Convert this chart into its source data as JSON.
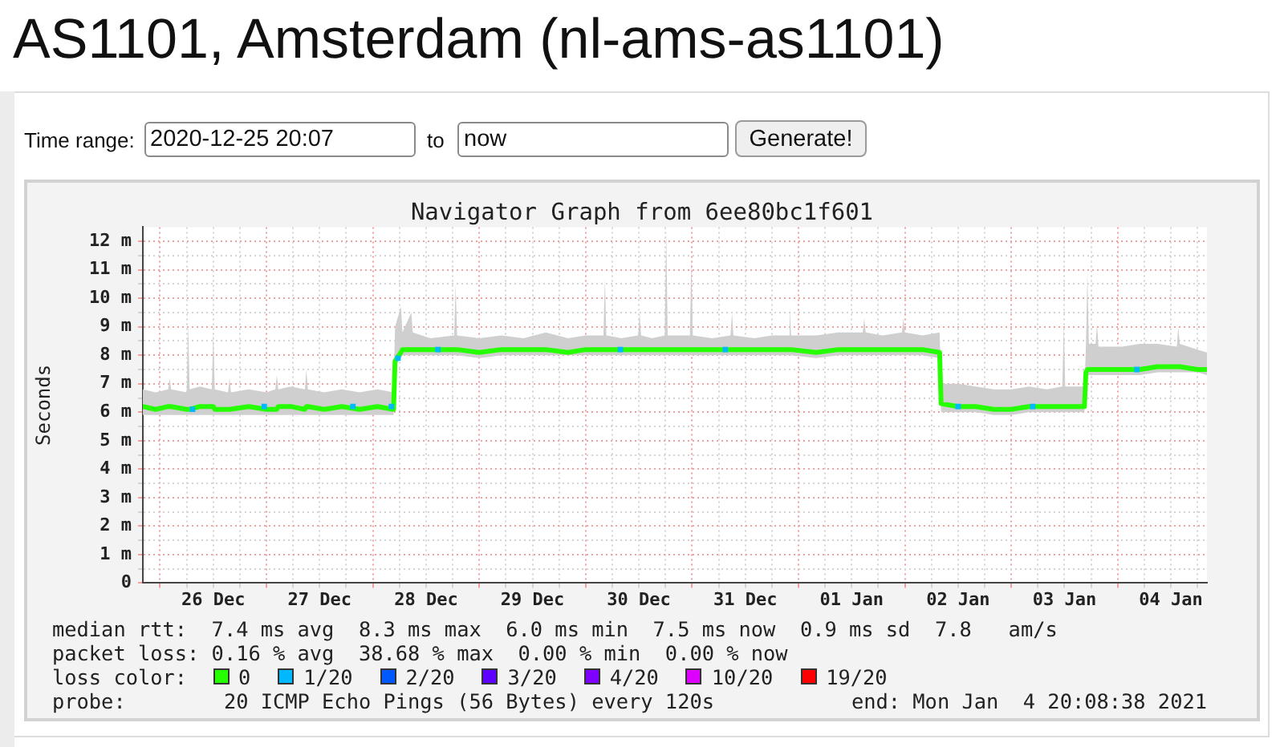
{
  "chart_data": {
    "type": "line",
    "title": "AS1101, Amsterdam (nl-ams-as1101)",
    "subtitle": "Navigator Graph from 6ee80bc1f601",
    "ylabel": "Seconds",
    "legend_title": "loss color:",
    "legend": "bottom",
    "grid": true,
    "xlim": [
      "2020-12-25T20:07",
      "2021-01-04T20:08"
    ],
    "xticks": [
      {
        "value": "2020-12-26T00:00",
        "label": null
      },
      {
        "value": "2020-12-26T06:00",
        "label": null
      },
      {
        "value": "2020-12-26T12:00",
        "label": "26 Dec"
      },
      {
        "value": "2020-12-26T18:00",
        "label": null
      },
      {
        "value": "2020-12-27T00:00",
        "label": null
      },
      {
        "value": "2020-12-27T06:00",
        "label": null
      },
      {
        "value": "2020-12-27T12:00",
        "label": "27 Dec"
      },
      {
        "value": "2020-12-27T18:00",
        "label": null
      },
      {
        "value": "2020-12-28T00:00",
        "label": null
      },
      {
        "value": "2020-12-28T06:00",
        "label": null
      },
      {
        "value": "2020-12-28T12:00",
        "label": "28 Dec"
      },
      {
        "value": "2020-12-28T18:00",
        "label": null
      },
      {
        "value": "2020-12-29T00:00",
        "label": null
      },
      {
        "value": "2020-12-29T06:00",
        "label": null
      },
      {
        "value": "2020-12-29T12:00",
        "label": "29 Dec"
      },
      {
        "value": "2020-12-29T18:00",
        "label": null
      },
      {
        "value": "2020-12-30T00:00",
        "label": null
      },
      {
        "value": "2020-12-30T06:00",
        "label": null
      },
      {
        "value": "2020-12-30T12:00",
        "label": "30 Dec"
      },
      {
        "value": "2020-12-30T18:00",
        "label": null
      },
      {
        "value": "2020-12-31T00:00",
        "label": null
      },
      {
        "value": "2020-12-31T06:00",
        "label": null
      },
      {
        "value": "2020-12-31T12:00",
        "label": "31 Dec"
      },
      {
        "value": "2020-12-31T18:00",
        "label": null
      },
      {
        "value": "2021-01-01T00:00",
        "label": null
      },
      {
        "value": "2021-01-01T06:00",
        "label": null
      },
      {
        "value": "2021-01-01T12:00",
        "label": "01 Jan"
      },
      {
        "value": "2021-01-01T18:00",
        "label": null
      },
      {
        "value": "2021-01-02T00:00",
        "label": null
      },
      {
        "value": "2021-01-02T06:00",
        "label": null
      },
      {
        "value": "2021-01-02T12:00",
        "label": "02 Jan"
      },
      {
        "value": "2021-01-02T18:00",
        "label": null
      },
      {
        "value": "2021-01-03T00:00",
        "label": null
      },
      {
        "value": "2021-01-03T06:00",
        "label": null
      },
      {
        "value": "2021-01-03T12:00",
        "label": "03 Jan"
      },
      {
        "value": "2021-01-03T18:00",
        "label": null
      },
      {
        "value": "2021-01-04T00:00",
        "label": null
      },
      {
        "value": "2021-01-04T06:00",
        "label": null
      },
      {
        "value": "2021-01-04T12:00",
        "label": "04 Jan"
      },
      {
        "value": "2021-01-04T18:00",
        "label": null
      }
    ],
    "ylim": [
      0,
      12.5
    ],
    "yticks": [
      0,
      {
        "value": 0.5,
        "label": null
      },
      {
        "value": 1,
        "label": "1 m"
      },
      {
        "value": 1.5,
        "label": null
      },
      {
        "value": 2,
        "label": "2 m"
      },
      {
        "value": 2.5,
        "label": null
      },
      {
        "value": 3,
        "label": "3 m"
      },
      {
        "value": 3.5,
        "label": null
      },
      {
        "value": 4,
        "label": "4 m"
      },
      {
        "value": 4.5,
        "label": null
      },
      {
        "value": 5,
        "label": "5 m"
      },
      {
        "value": 5.5,
        "label": null
      },
      {
        "value": 6,
        "label": "6 m"
      },
      {
        "value": 6.5,
        "label": null
      },
      {
        "value": 7,
        "label": "7 m"
      },
      {
        "value": 7.5,
        "label": null
      },
      {
        "value": 8,
        "label": "8 m"
      },
      {
        "value": 8.5,
        "label": null
      },
      {
        "value": 9,
        "label": "9 m"
      },
      {
        "value": 9.5,
        "label": null
      },
      {
        "value": 10,
        "label": "10 m"
      },
      {
        "value": 10.5,
        "label": null
      },
      {
        "value": 11,
        "label": "11 m"
      },
      {
        "value": 11.5,
        "label": null
      },
      {
        "value": 12,
        "label": "12 m"
      }
    ],
    "series": [
      {
        "name": "0",
        "color": "#26ff00",
        "x": [
          "2020-12-25T20:07",
          "2020-12-25T23:00",
          "2020-12-26T01:50",
          "2020-12-26T02:10",
          "2020-12-26T02:30",
          "2020-12-26T06:00",
          "2020-12-26T06:20",
          "2020-12-26T06:40",
          "2020-12-26T09:00",
          "2020-12-26T11:40",
          "2020-12-26T12:00",
          "2020-12-26T12:20",
          "2020-12-26T15:20",
          "2020-12-26T15:40",
          "2020-12-26T16:00",
          "2020-12-26T20:00",
          "2020-12-27T00:00",
          "2020-12-27T02:00",
          "2020-12-27T02:20",
          "2020-12-27T02:40",
          "2020-12-27T05:30",
          "2020-12-27T08:40",
          "2020-12-27T09:00",
          "2020-12-27T09:20",
          "2020-12-27T13:00",
          "2020-12-27T17:00",
          "2020-12-27T21:00",
          "2020-12-28T01:00",
          "2020-12-28T04:40",
          "2020-12-28T05:00",
          "2020-12-28T06:20",
          "2020-12-28T06:40",
          "2020-12-28T08:40",
          "2020-12-28T09:00",
          "2020-12-28T13:00",
          "2020-12-28T18:20",
          "2020-12-28T18:40",
          "2020-12-28T19:00",
          "2020-12-29T00:00",
          "2020-12-29T05:00",
          "2020-12-29T10:00",
          "2020-12-29T15:00",
          "2020-12-29T20:00",
          "2020-12-30T00:00",
          "2020-12-30T04:00",
          "2020-12-30T04:20",
          "2020-12-30T04:40",
          "2020-12-30T08:00",
          "2020-12-30T11:50",
          "2020-12-30T12:10",
          "2020-12-30T12:30",
          "2020-12-30T15:00",
          "2020-12-30T17:50",
          "2020-12-30T18:10",
          "2020-12-30T18:30",
          "2020-12-30T23:30",
          "2020-12-30T23:50",
          "2020-12-31T00:10",
          "2020-12-31T04:30",
          "2020-12-31T08:40",
          "2020-12-31T09:00",
          "2020-12-31T09:20",
          "2020-12-31T14:00",
          "2020-12-31T18:00",
          "2020-12-31T21:40",
          "2020-12-31T22:00",
          "2020-12-31T22:20",
          "2021-01-01T04:00",
          "2021-01-01T09:00",
          "2021-01-01T14:30",
          "2021-01-01T14:50",
          "2021-01-01T15:10",
          "2021-01-01T19:00",
          "2021-01-01T23:20",
          "2021-01-01T23:40",
          "2021-01-02T00:00",
          "2021-01-02T04:00",
          "2021-01-02T07:50",
          "2021-01-02T08:10",
          "2021-01-02T12:00",
          "2021-01-02T16:00",
          "2021-01-02T20:00",
          "2021-01-03T00:00",
          "2021-01-03T04:00",
          "2021-01-03T08:00",
          "2021-01-03T11:30",
          "2021-01-03T11:50",
          "2021-01-03T12:10",
          "2021-01-03T16:30",
          "2021-01-03T16:50",
          "2021-01-03T17:10",
          "2021-01-03T17:30",
          "2021-01-03T19:00",
          "2021-01-03T19:20",
          "2021-01-03T19:40",
          "2021-01-04T01:00",
          "2021-01-04T05:00",
          "2021-01-04T09:00",
          "2021-01-04T13:20",
          "2021-01-04T13:40",
          "2021-01-04T14:00",
          "2021-01-04T18:00",
          "2021-01-04T20:08"
        ],
        "values": [
          6.2,
          6.1,
          6.2,
          6.2,
          6.2,
          6.1,
          6.1,
          6.1,
          6.2,
          6.2,
          6.2,
          6.1,
          6.1,
          6.1,
          6.1,
          6.2,
          6.1,
          6.1,
          6.1,
          6.2,
          6.2,
          6.1,
          6.2,
          6.2,
          6.1,
          6.2,
          6.1,
          6.2,
          6.1,
          7.8,
          8.1,
          8.2,
          8.2,
          8.2,
          8.2,
          8.2,
          8.2,
          8.2,
          8.1,
          8.2,
          8.2,
          8.2,
          8.1,
          8.2,
          8.2,
          8.2,
          8.2,
          8.2,
          8.2,
          8.2,
          8.2,
          8.2,
          8.2,
          8.2,
          8.2,
          8.2,
          8.2,
          8.2,
          8.2,
          8.2,
          8.2,
          8.2,
          8.2,
          8.2,
          8.2,
          8.2,
          8.2,
          8.1,
          8.2,
          8.2,
          8.2,
          8.2,
          8.2,
          8.2,
          8.2,
          8.2,
          8.2,
          8.1,
          6.3,
          6.2,
          6.2,
          6.1,
          6.1,
          6.2,
          6.2,
          6.2,
          6.2,
          6.2,
          6.2,
          7.4,
          7.5,
          7.5,
          7.5,
          7.5,
          7.5,
          7.5,
          7.5,
          7.6,
          7.6,
          7.6,
          7.6,
          7.5,
          7.5
        ],
        "lower": [
          5.9,
          5.9,
          5.9,
          5.9,
          5.9,
          5.9,
          5.9,
          5.9,
          5.9,
          5.9,
          5.9,
          5.9,
          5.9,
          5.9,
          5.9,
          5.9,
          5.9,
          5.9,
          5.9,
          5.9,
          5.9,
          5.9,
          5.9,
          5.9,
          5.9,
          5.9,
          5.9,
          5.9,
          5.9,
          7.6,
          7.9,
          8,
          8,
          8,
          8,
          8,
          8,
          8,
          7.9,
          8,
          8,
          8,
          8,
          8,
          8,
          8,
          8,
          8,
          8,
          8,
          8,
          8,
          8,
          8,
          8,
          8,
          8,
          8,
          8,
          8,
          8,
          8,
          8,
          8,
          8,
          8,
          8,
          7.9,
          8,
          8,
          8,
          8,
          8,
          8,
          8,
          8,
          8,
          7.9,
          6,
          6,
          6,
          5.9,
          5.9,
          6,
          6,
          6,
          6,
          6,
          6,
          7.3,
          7.3,
          7.3,
          7.3,
          7.3,
          7.3,
          7.3,
          7.3,
          7.4,
          7.4,
          7.4,
          7.4,
          7.4,
          7.3
        ],
        "upper": [
          6.8,
          6.7,
          6.8,
          7.2,
          6.8,
          6.7,
          9.1,
          6.8,
          6.9,
          6.8,
          8.8,
          6.8,
          6.7,
          7.2,
          6.7,
          6.8,
          6.7,
          6.8,
          7.3,
          6.8,
          6.9,
          6.8,
          7.5,
          6.8,
          6.7,
          6.8,
          6.7,
          6.8,
          6.7,
          9,
          9.7,
          8.8,
          9.5,
          8.8,
          8.6,
          8.7,
          10.5,
          8.7,
          8.6,
          8.7,
          8.6,
          8.8,
          8.6,
          8.7,
          8.7,
          10.7,
          8.7,
          8.6,
          8.7,
          9.5,
          8.7,
          8.6,
          8.7,
          12.4,
          8.7,
          8.7,
          11.4,
          8.7,
          8.6,
          8.7,
          9.5,
          8.7,
          8.6,
          8.7,
          8.7,
          9.7,
          8.7,
          8.7,
          8.8,
          8.8,
          9.3,
          8.8,
          8.7,
          8.8,
          9.3,
          8.8,
          8.7,
          8.8,
          7,
          7,
          6.9,
          6.8,
          6.8,
          6.9,
          6.8,
          6.9,
          9.1,
          6.9,
          6.9,
          8.3,
          10.9,
          8.4,
          8.4,
          9.1,
          8.3,
          8.3,
          8.4,
          8.4,
          8.3,
          9,
          8.4,
          8.2,
          8.1
        ]
      },
      {
        "name": "1/20",
        "color": "#00b8ff",
        "type": "scatter",
        "marker": "square",
        "x": [
          "2020-12-26T07:20",
          "2020-12-26T23:30",
          "2020-12-27T19:30",
          "2020-12-28T04:10",
          "2020-12-28T05:40",
          "2020-12-28T14:40",
          "2020-12-30T07:50",
          "2020-12-31T07:30",
          "2021-01-02T12:00",
          "2021-01-03T04:50",
          "2021-01-04T04:20"
        ],
        "values": [
          6.1,
          6.2,
          6.2,
          6.2,
          7.9,
          8.2,
          8.2,
          8.2,
          6.2,
          6.2,
          7.5
        ]
      },
      {
        "name": "2/20",
        "color": "#0059ff"
      },
      {
        "name": "3/20",
        "color": "#5e00ff"
      },
      {
        "name": "4/20",
        "color": "#7e00ff"
      },
      {
        "name": "10/20",
        "color": "#dd00ff"
      },
      {
        "name": "19/20",
        "color": "#ff0000"
      }
    ],
    "annotations": [
      "Time range:",
      "2020-12-25 20:07",
      "to",
      "now",
      "Generate!",
      "median rtt:  7.4 ms avg  8.3 ms max  6.0 ms min  7.5 ms now  0.9 ms sd  7.8   am/s",
      "packet loss: 0.16 % avg  38.68 % max  0.00 % min  0.00 % now",
      "probe:        20 ICMP Echo Pings (56 Bytes) every 120s",
      "end: Mon Jan  4 20:08:38 2021"
    ]
  }
}
